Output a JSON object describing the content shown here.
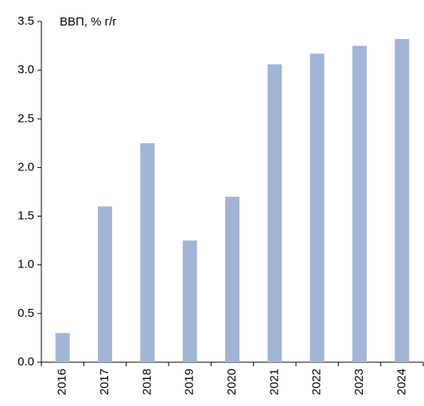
{
  "chart_data": {
    "type": "bar",
    "title": "ВВП, % г/г",
    "categories": [
      "2016",
      "2017",
      "2018",
      "2019",
      "2020",
      "2021",
      "2022",
      "2023",
      "2024"
    ],
    "values": [
      0.3,
      1.6,
      2.25,
      1.25,
      1.7,
      3.06,
      3.17,
      3.25,
      3.32
    ],
    "color": "#a3b5d6",
    "ylim": [
      0,
      3.5
    ],
    "yticks": [
      {
        "value": 0,
        "label": "0.0"
      },
      0.5,
      {
        "value": 1,
        "label": "1.0"
      },
      1.5,
      {
        "value": 2,
        "label": "2.0"
      },
      2.5,
      {
        "value": 3,
        "label": "3.0"
      },
      3.5
    ],
    "grid": false
  }
}
